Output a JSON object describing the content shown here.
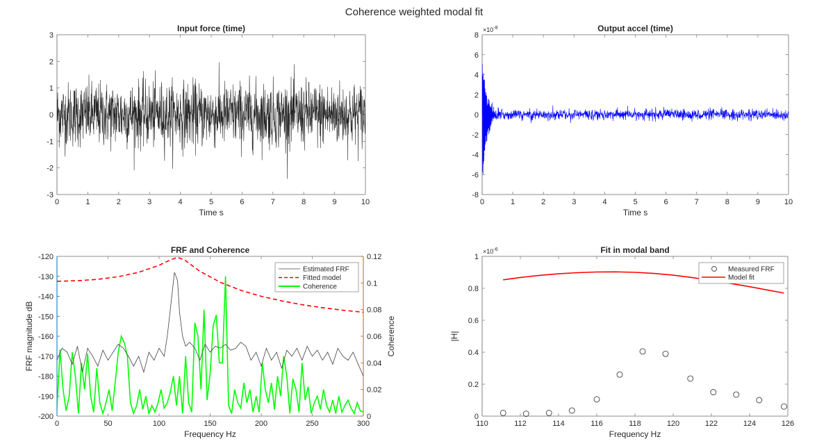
{
  "figure_title": "Coherence weighted modal fit",
  "colors": {
    "axis": "#262626",
    "input_force": "#000000",
    "output_accel": "#0000ff",
    "estimated_frf": "#404040",
    "fitted_model": "#ff0000",
    "coherence": "#00ff00",
    "left_axis": "#0072bd",
    "right_axis": "#d95319",
    "measured_frf": "#404040",
    "model_fit": "#ff0000"
  },
  "chart_data": [
    {
      "id": "input-force",
      "type": "line",
      "title": "Input force (time)",
      "xlabel": "Time s",
      "ylabel": "",
      "xlim": [
        0,
        10
      ],
      "ylim": [
        -3,
        3
      ],
      "xticks": [
        "0",
        "1",
        "2",
        "3",
        "4",
        "5",
        "6",
        "7",
        "8",
        "9",
        "10"
      ],
      "yticks": [
        "-3",
        "-2",
        "-1",
        "0",
        "1",
        "2",
        "3"
      ],
      "series": [
        {
          "name": "Input force",
          "description_values": {
            "type": "random_noise",
            "std": 0.6,
            "peak_max": 2.2,
            "peak_min": -2.5,
            "duration": 10
          }
        }
      ]
    },
    {
      "id": "output-accel",
      "type": "line",
      "title": "Output accel (time)",
      "xlabel": "Time s",
      "ylabel": "",
      "xlim": [
        0,
        10
      ],
      "ylim": [
        -8,
        8
      ],
      "y_exponent": "×10-8",
      "xticks": [
        "0",
        "1",
        "2",
        "3",
        "4",
        "5",
        "6",
        "7",
        "8",
        "9",
        "10"
      ],
      "yticks": [
        "-8",
        "-6",
        "-4",
        "-2",
        "0",
        "2",
        "4",
        "6",
        "8"
      ],
      "series": [
        {
          "name": "Output accel",
          "description_values": {
            "type": "decaying_transient_plus_noise",
            "initial_peak": 6.3,
            "initial_trough": -7.0,
            "decay_time": 0.15,
            "steady_amplitude": 0.7
          }
        }
      ]
    },
    {
      "id": "frf-coherence",
      "type": "line",
      "title": "FRF and Coherence",
      "xlabel": "Frequency Hz",
      "ylabel": "FRF magnitude dB",
      "ylabel_right": "Coherence",
      "xlim": [
        0,
        300
      ],
      "ylim": [
        -200,
        -120
      ],
      "ylim_right": [
        0,
        0.12
      ],
      "xticks": [
        "0",
        "50",
        "100",
        "150",
        "200",
        "250",
        "300"
      ],
      "yticks": [
        "-200",
        "-190",
        "-180",
        "-170",
        "-160",
        "-150",
        "-140",
        "-130",
        "-120"
      ],
      "yticks_right": [
        "0",
        "0.02",
        "0.04",
        "0.06",
        "0.08",
        "0.1",
        "0.12"
      ],
      "legend": {
        "placement": "top-right",
        "entries": [
          "Estimated FRF",
          "Fitted model",
          "Coherence"
        ]
      },
      "series": [
        {
          "name": "Estimated FRF",
          "axis": "left",
          "x": [
            0,
            5,
            10,
            15,
            20,
            25,
            30,
            35,
            40,
            45,
            50,
            55,
            60,
            65,
            70,
            75,
            80,
            85,
            90,
            95,
            100,
            105,
            108,
            112,
            115,
            118,
            120,
            123,
            126,
            130,
            135,
            140,
            145,
            150,
            155,
            160,
            165,
            170,
            175,
            180,
            185,
            190,
            195,
            200,
            205,
            210,
            215,
            220,
            225,
            230,
            235,
            240,
            245,
            250,
            255,
            260,
            265,
            270,
            275,
            280,
            285,
            290,
            295,
            300
          ],
          "y": [
            -172,
            -166,
            -168,
            -174,
            -165,
            -178,
            -166,
            -170,
            -175,
            -167,
            -172,
            -168,
            -164,
            -166,
            -170,
            -175,
            -170,
            -178,
            -168,
            -172,
            -166,
            -170,
            -160,
            -142,
            -128,
            -132,
            -148,
            -160,
            -165,
            -163,
            -166,
            -172,
            -164,
            -168,
            -165,
            -166,
            -164,
            -167,
            -166,
            -163,
            -165,
            -172,
            -168,
            -175,
            -166,
            -172,
            -168,
            -176,
            -167,
            -170,
            -166,
            -172,
            -165,
            -170,
            -167,
            -172,
            -168,
            -174,
            -166,
            -170,
            -172,
            -168,
            -174,
            -180
          ]
        },
        {
          "name": "Fitted model",
          "axis": "left",
          "x": [
            0,
            20,
            40,
            60,
            80,
            100,
            110,
            118,
            125,
            140,
            160,
            180,
            200,
            220,
            240,
            260,
            280,
            300
          ],
          "y": [
            -132.5,
            -132.2,
            -131.5,
            -130.2,
            -128,
            -124.5,
            -122,
            -120.5,
            -121.8,
            -127.5,
            -133,
            -137,
            -140,
            -142.3,
            -144.2,
            -145.7,
            -147,
            -148
          ]
        },
        {
          "name": "Coherence",
          "axis": "right",
          "x": [
            0,
            3,
            6,
            9,
            12,
            15,
            18,
            21,
            24,
            27,
            30,
            33,
            36,
            39,
            42,
            45,
            48,
            51,
            54,
            57,
            60,
            63,
            66,
            69,
            72,
            75,
            78,
            81,
            84,
            87,
            90,
            93,
            96,
            99,
            102,
            105,
            108,
            111,
            114,
            117,
            120,
            123,
            126,
            129,
            132,
            135,
            138,
            141,
            144,
            147,
            150,
            153,
            156,
            159,
            162,
            165,
            168,
            171,
            174,
            177,
            180,
            183,
            186,
            189,
            192,
            195,
            198,
            201,
            204,
            207,
            210,
            213,
            216,
            219,
            222,
            225,
            228,
            231,
            234,
            237,
            240,
            243,
            246,
            249,
            252,
            255,
            258,
            261,
            264,
            267,
            270,
            273,
            276,
            279,
            282,
            285,
            288,
            291,
            294,
            297,
            300
          ],
          "y": [
            0.005,
            0.05,
            0.02,
            0.004,
            0.015,
            0.048,
            0.03,
            0.002,
            0.04,
            0.02,
            0.047,
            0.015,
            0.003,
            0.036,
            0.01,
            0.002,
            0.01,
            0.02,
            0.004,
            0.025,
            0.048,
            0.06,
            0.055,
            0.045,
            0.01,
            0.002,
            0.008,
            0.02,
            0.005,
            0.015,
            0.002,
            0.008,
            0.003,
            0.01,
            0.02,
            0.006,
            0.01,
            0.018,
            0.03,
            0.008,
            0.03,
            0.002,
            0.045,
            0.01,
            0.003,
            0.07,
            0.06,
            0.02,
            0.08,
            0.012,
            0.032,
            0.068,
            0.076,
            0.04,
            0.04,
            0.105,
            0.008,
            0.002,
            0.02,
            0.01,
            0.006,
            0.025,
            0.01,
            0.02,
            0.003,
            0.015,
            0.003,
            0.04,
            0.02,
            0.01,
            0.025,
            0.005,
            0.03,
            0.015,
            0.045,
            0.03,
            0.002,
            0.028,
            0.02,
            0.003,
            0.04,
            0.012,
            0.022,
            0.002,
            0.01,
            0.015,
            0.005,
            0.02,
            0.008,
            0.003,
            0.012,
            0.002,
            0.015,
            0.003,
            0.008,
            0.012,
            0.006,
            0.002,
            0.01,
            0.004,
            0.003
          ]
        }
      ]
    },
    {
      "id": "modal-band",
      "type": "scatter",
      "title": "Fit in modal band",
      "xlabel": "Frequency Hz",
      "ylabel": "|H|",
      "xlim": [
        110,
        126
      ],
      "ylim": [
        0,
        1
      ],
      "y_exponent": "×10-6",
      "xticks": [
        "110",
        "112",
        "114",
        "116",
        "118",
        "120",
        "122",
        "124",
        "126"
      ],
      "yticks": [
        "0",
        "0.2",
        "0.4",
        "0.6",
        "0.8",
        "1"
      ],
      "legend": {
        "placement": "top-right",
        "entries": [
          "Measured FRF",
          "Model fit"
        ]
      },
      "series": [
        {
          "name": "Measured FRF",
          "marker": "circle",
          "x": [
            111.1,
            112.3,
            113.5,
            114.7,
            116.0,
            117.2,
            118.4,
            119.6,
            120.9,
            122.1,
            123.3,
            124.5,
            125.8
          ],
          "y": [
            0.02,
            0.015,
            0.02,
            0.035,
            0.105,
            0.26,
            0.405,
            0.39,
            0.235,
            0.15,
            0.135,
            0.1,
            0.06
          ]
        },
        {
          "name": "Model fit",
          "marker": "line",
          "x": [
            111.1,
            112,
            113,
            114,
            115,
            116,
            117,
            118,
            119,
            120,
            121,
            122,
            123,
            124,
            125,
            125.8
          ],
          "y": [
            0.853,
            0.868,
            0.881,
            0.891,
            0.898,
            0.902,
            0.903,
            0.9,
            0.893,
            0.882,
            0.867,
            0.85,
            0.83,
            0.81,
            0.788,
            0.77
          ]
        }
      ]
    }
  ]
}
